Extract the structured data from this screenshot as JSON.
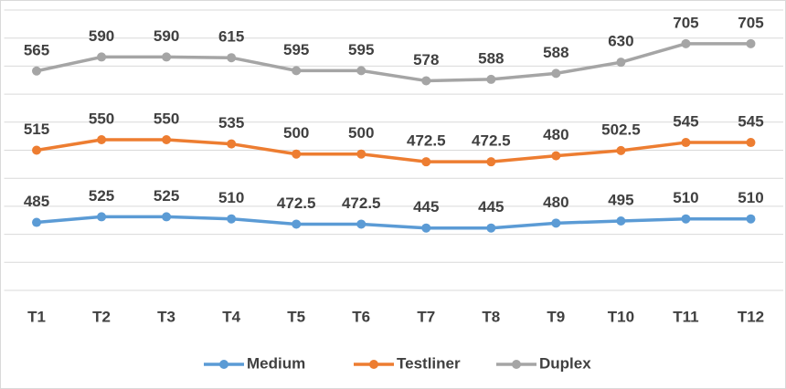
{
  "chart_data": {
    "type": "line",
    "stacked": true,
    "categories": [
      "T1",
      "T2",
      "T3",
      "T4",
      "T5",
      "T6",
      "T7",
      "T8",
      "T9",
      "T10",
      "T11",
      "T12"
    ],
    "series": [
      {
        "name": "Medium",
        "color": "#5b9bd5",
        "values": [
          485,
          525,
          525,
          510,
          472.5,
          472.5,
          445,
          445,
          480,
          495,
          510,
          510
        ]
      },
      {
        "name": "Testliner",
        "color": "#ed7d31",
        "values": [
          515,
          550,
          550,
          535,
          500,
          500,
          472.5,
          472.5,
          480,
          502.5,
          545,
          545
        ]
      },
      {
        "name": "Duplex",
        "color": "#a5a5a5",
        "values": [
          565,
          590,
          590,
          615,
          595,
          595,
          578,
          588,
          588,
          630,
          705,
          705
        ]
      }
    ],
    "ylim": [
      0,
      2000
    ],
    "yticks": [
      0,
      200,
      400,
      600,
      800,
      1000,
      1200,
      1400,
      1600,
      1800,
      2000
    ],
    "grid": true,
    "legend": "bottom"
  }
}
